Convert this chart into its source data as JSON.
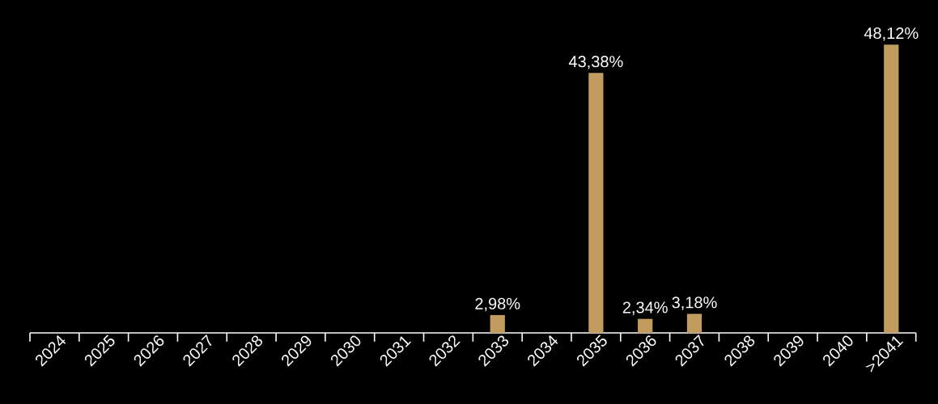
{
  "chart_data": {
    "type": "bar",
    "categories": [
      "2024",
      "2025",
      "2026",
      "2027",
      "2028",
      "2029",
      "2030",
      "2031",
      "2032",
      "2033",
      "2034",
      "2035",
      "2036",
      "2037",
      "2038",
      "2039",
      "2040",
      ">2041"
    ],
    "values": [
      null,
      null,
      null,
      null,
      null,
      null,
      null,
      null,
      null,
      2.98,
      null,
      43.38,
      2.34,
      3.18,
      null,
      null,
      null,
      48.12
    ],
    "value_labels": [
      null,
      null,
      null,
      null,
      null,
      null,
      null,
      null,
      null,
      "2,98%",
      null,
      "43,38%",
      "2,34%",
      "3,18%",
      null,
      null,
      null,
      "48,12%"
    ],
    "color": "#c19c5e"
  }
}
